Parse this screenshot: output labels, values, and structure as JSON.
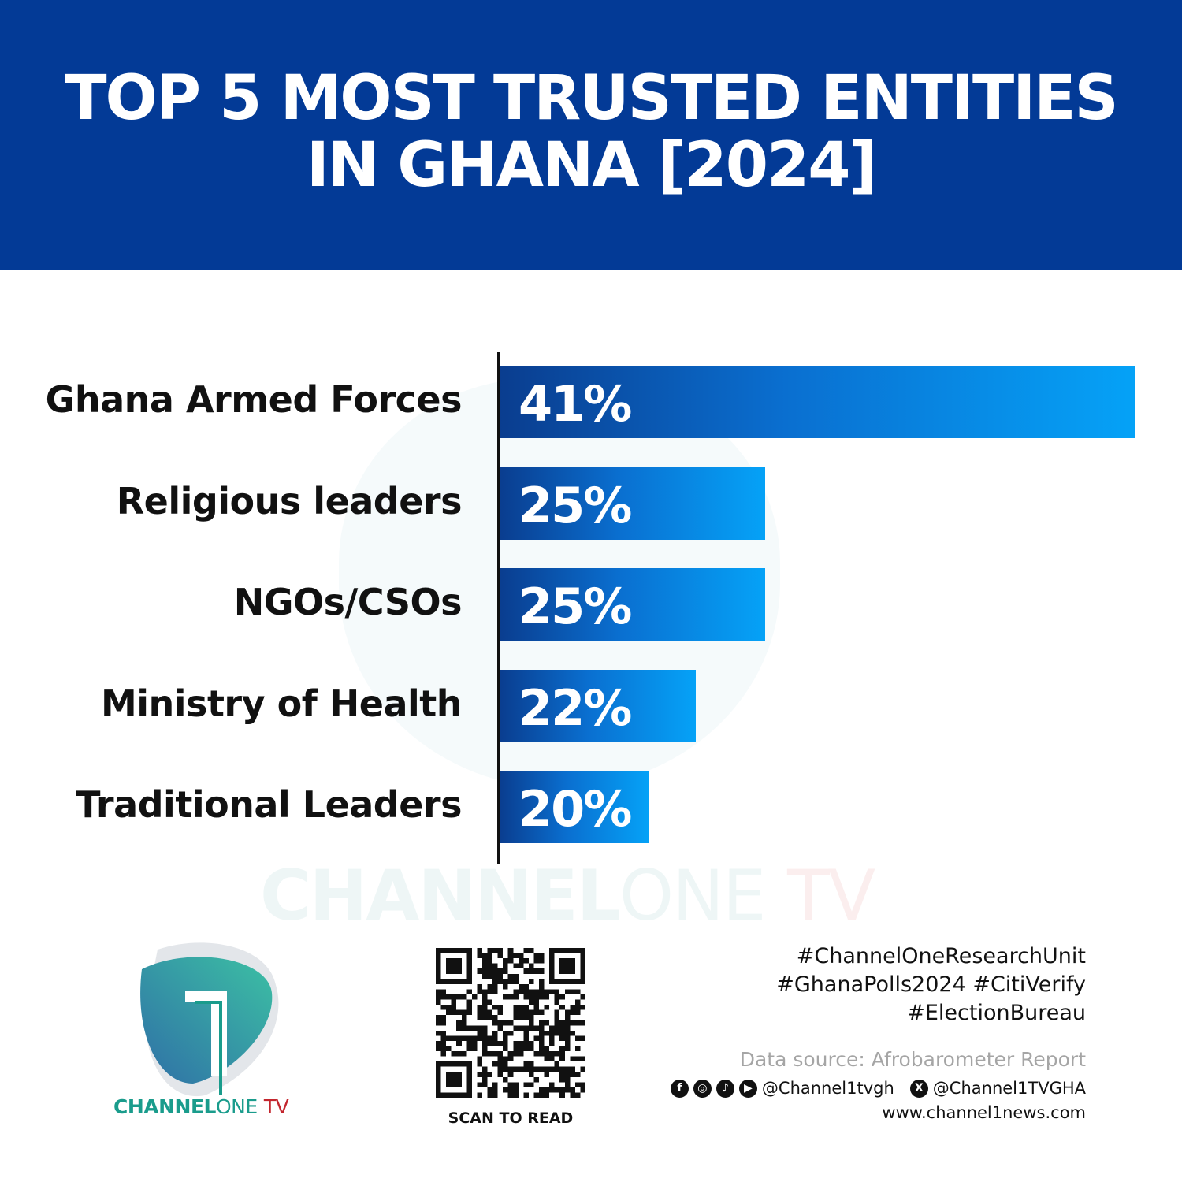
{
  "header": {
    "title_line1": "TOP 5 MOST TRUSTED ENTITIES",
    "title_line2": "IN GHANA [2024]",
    "background": "#033a96"
  },
  "chart_data": {
    "type": "bar",
    "orientation": "horizontal",
    "title": "TOP 5 MOST TRUSTED ENTITIES IN GHANA [2024]",
    "categories": [
      "Ghana Armed Forces",
      "Religious leaders",
      "NGOs/CSOs",
      "Ministry of Health",
      "Traditional Leaders"
    ],
    "values": [
      41,
      25,
      25,
      22,
      20
    ],
    "data_labels": [
      "41%",
      "25%",
      "25%",
      "22%",
      "20%"
    ],
    "unit": "%",
    "grid": false,
    "bar_gradient": [
      "#0a3d8f",
      "#05a2f7"
    ]
  },
  "watermark": {
    "text_a": "CHANNEL",
    "text_b": "ONE",
    "text_c": "TV"
  },
  "logo": {
    "brand_a": "CHANNEL",
    "brand_b": "ONE",
    "brand_c": "TV",
    "teal": "#1a9c8c",
    "red": "#c3262e"
  },
  "qr": {
    "caption": "SCAN TO READ"
  },
  "footer": {
    "hashtags": [
      "#ChannelOneResearchUnit",
      "#GhanaPolls2024 #CitiVerify",
      "#ElectionBureau"
    ],
    "data_source": "Data source: Afrobarometer Report",
    "social_icons": [
      "facebook-icon",
      "instagram-icon",
      "tiktok-icon",
      "youtube-icon"
    ],
    "handle_main": "@Channel1tvgh",
    "x_icon": "x-icon",
    "handle_x": "@Channel1TVGHA",
    "website": "www.channel1news.com"
  }
}
